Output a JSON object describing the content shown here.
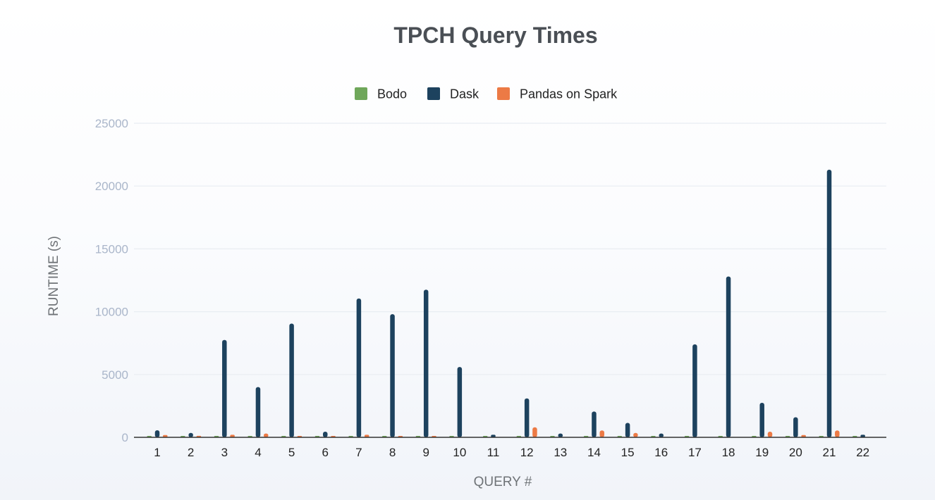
{
  "chart_data": {
    "type": "bar",
    "title": "TPCH Query Times",
    "xlabel": "QUERY #",
    "ylabel": "RUNTIME (s)",
    "ylim": [
      0,
      25000
    ],
    "yticks": [
      0,
      5000,
      10000,
      15000,
      20000,
      25000
    ],
    "grid": true,
    "legend_position": "top-center",
    "categories": [
      "1",
      "2",
      "3",
      "4",
      "5",
      "6",
      "7",
      "8",
      "9",
      "10",
      "11",
      "12",
      "13",
      "14",
      "15",
      "16",
      "17",
      "18",
      "19",
      "20",
      "21",
      "22"
    ],
    "series": [
      {
        "name": "Bodo",
        "color": "#6fa75a",
        "values": [
          10,
          10,
          10,
          10,
          10,
          10,
          100,
          10,
          10,
          10,
          10,
          10,
          10,
          10,
          10,
          10,
          10,
          10,
          10,
          10,
          10,
          10
        ]
      },
      {
        "name": "Dask",
        "color": "#1d425e",
        "values": [
          560,
          350,
          7750,
          4000,
          9050,
          450,
          11050,
          9800,
          11750,
          5600,
          200,
          3100,
          300,
          2050,
          1150,
          300,
          7400,
          12800,
          2750,
          1600,
          21300,
          200
        ]
      },
      {
        "name": "Pandas on Spark",
        "color": "#ec7a45",
        "values": [
          180,
          120,
          200,
          300,
          100,
          100,
          200,
          100,
          100,
          0,
          0,
          800,
          0,
          550,
          350,
          0,
          0,
          0,
          450,
          180,
          550,
          0
        ]
      }
    ]
  },
  "colors": {
    "title": "#4a4f55",
    "axis_label": "#6f7377",
    "y_tick": "#aab6ca",
    "x_tick": "#222222",
    "grid": "#e9edf2",
    "axis_line": "#333333",
    "legend_text": "#222222"
  }
}
